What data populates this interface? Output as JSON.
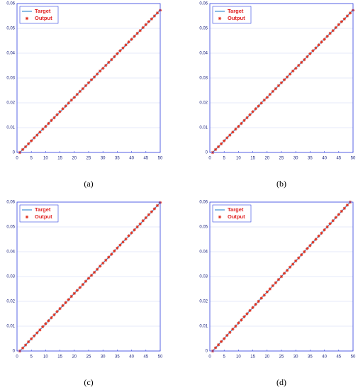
{
  "chart_data": [
    {
      "type": "line",
      "caption": "(a)",
      "xlim": [
        0,
        50
      ],
      "ylim": [
        0,
        0.06
      ],
      "xticks": [
        0,
        5,
        10,
        15,
        20,
        25,
        30,
        35,
        40,
        45,
        50
      ],
      "yticks": [
        0,
        0.01,
        0.02,
        0.03,
        0.04,
        0.05,
        0.06
      ],
      "grid": true,
      "legend": "upper left",
      "x": [
        1,
        2,
        3,
        4,
        5,
        6,
        7,
        8,
        9,
        10,
        11,
        12,
        13,
        14,
        15,
        16,
        17,
        18,
        19,
        20,
        21,
        22,
        23,
        24,
        25,
        26,
        27,
        28,
        29,
        30,
        31,
        32,
        33,
        34,
        35,
        36,
        37,
        38,
        39,
        40,
        41,
        42,
        43,
        44,
        45,
        46,
        47,
        48,
        49,
        50
      ],
      "series": [
        {
          "name": "Target",
          "color": "#3d8fd1",
          "values": [
            0,
            0.0012,
            0.0023,
            0.0035,
            0.0047,
            0.0059,
            0.007,
            0.0082,
            0.0094,
            0.0105,
            0.0117,
            0.0129,
            0.014,
            0.0152,
            0.0164,
            0.0176,
            0.0187,
            0.0199,
            0.0211,
            0.0222,
            0.0234,
            0.0246,
            0.0257,
            0.0269,
            0.0281,
            0.0293,
            0.0304,
            0.0316,
            0.0328,
            0.0339,
            0.0351,
            0.0363,
            0.0374,
            0.0386,
            0.0398,
            0.041,
            0.0421,
            0.0433,
            0.0445,
            0.0456,
            0.0468,
            0.048,
            0.0491,
            0.0503,
            0.0515,
            0.0527,
            0.0538,
            0.055,
            0.0562,
            0.0573
          ]
        },
        {
          "name": "Output",
          "color": "#e0301e",
          "values": [
            0,
            0.0012,
            0.0023,
            0.0035,
            0.0047,
            0.0059,
            0.007,
            0.0082,
            0.0094,
            0.0105,
            0.0117,
            0.0129,
            0.014,
            0.0152,
            0.0164,
            0.0176,
            0.0187,
            0.0199,
            0.0211,
            0.0222,
            0.0234,
            0.0246,
            0.0257,
            0.0269,
            0.0281,
            0.0293,
            0.0304,
            0.0316,
            0.0328,
            0.0339,
            0.0351,
            0.0363,
            0.0374,
            0.0386,
            0.0398,
            0.041,
            0.0421,
            0.0433,
            0.0445,
            0.0456,
            0.0468,
            0.048,
            0.0491,
            0.0503,
            0.0515,
            0.0527,
            0.0538,
            0.055,
            0.0562,
            0.0573
          ]
        }
      ]
    },
    {
      "type": "line",
      "caption": "(b)",
      "xlim": [
        0,
        50
      ],
      "ylim": [
        0,
        0.06
      ],
      "xticks": [
        0,
        5,
        10,
        15,
        20,
        25,
        30,
        35,
        40,
        45,
        50
      ],
      "yticks": [
        0,
        0.01,
        0.02,
        0.03,
        0.04,
        0.05,
        0.06
      ],
      "grid": true,
      "legend": "upper left",
      "x": [
        1,
        2,
        3,
        4,
        5,
        6,
        7,
        8,
        9,
        10,
        11,
        12,
        13,
        14,
        15,
        16,
        17,
        18,
        19,
        20,
        21,
        22,
        23,
        24,
        25,
        26,
        27,
        28,
        29,
        30,
        31,
        32,
        33,
        34,
        35,
        36,
        37,
        38,
        39,
        40,
        41,
        42,
        43,
        44,
        45,
        46,
        47,
        48,
        49,
        50
      ],
      "series": [
        {
          "name": "Target",
          "color": "#3d8fd1",
          "values": [
            0,
            0.0012,
            0.0023,
            0.0035,
            0.0047,
            0.0059,
            0.007,
            0.0082,
            0.0094,
            0.0105,
            0.0117,
            0.0129,
            0.014,
            0.0152,
            0.0164,
            0.0176,
            0.0187,
            0.0199,
            0.0211,
            0.0222,
            0.0234,
            0.0246,
            0.0257,
            0.0269,
            0.0281,
            0.0293,
            0.0304,
            0.0316,
            0.0328,
            0.0339,
            0.0351,
            0.0363,
            0.0374,
            0.0386,
            0.0398,
            0.041,
            0.0421,
            0.0433,
            0.0445,
            0.0456,
            0.0468,
            0.048,
            0.0491,
            0.0503,
            0.0515,
            0.0527,
            0.0538,
            0.055,
            0.0562,
            0.0573
          ]
        },
        {
          "name": "Output",
          "color": "#e0301e",
          "values": [
            0,
            0.0012,
            0.0023,
            0.0035,
            0.0047,
            0.0059,
            0.007,
            0.0082,
            0.0094,
            0.0105,
            0.0117,
            0.0129,
            0.014,
            0.0152,
            0.0164,
            0.0176,
            0.0187,
            0.0199,
            0.0211,
            0.0222,
            0.0234,
            0.0246,
            0.0257,
            0.0269,
            0.0281,
            0.0293,
            0.0304,
            0.0316,
            0.0328,
            0.0339,
            0.0351,
            0.0363,
            0.0374,
            0.0386,
            0.0398,
            0.041,
            0.0421,
            0.0433,
            0.0445,
            0.0456,
            0.0468,
            0.048,
            0.0491,
            0.0503,
            0.0515,
            0.0527,
            0.0538,
            0.055,
            0.0562,
            0.0573
          ]
        }
      ]
    },
    {
      "type": "line",
      "caption": "(c)",
      "xlim": [
        0,
        50
      ],
      "ylim": [
        0,
        0.06
      ],
      "xticks": [
        0,
        5,
        10,
        15,
        20,
        25,
        30,
        35,
        40,
        45,
        50
      ],
      "yticks": [
        0,
        0.01,
        0.02,
        0.03,
        0.04,
        0.05,
        0.06
      ],
      "grid": true,
      "legend": "upper left",
      "x": [
        1,
        2,
        3,
        4,
        5,
        6,
        7,
        8,
        9,
        10,
        11,
        12,
        13,
        14,
        15,
        16,
        17,
        18,
        19,
        20,
        21,
        22,
        23,
        24,
        25,
        26,
        27,
        28,
        29,
        30,
        31,
        32,
        33,
        34,
        35,
        36,
        37,
        38,
        39,
        40,
        41,
        42,
        43,
        44,
        45,
        46,
        47,
        48,
        49,
        50
      ],
      "series": [
        {
          "name": "Target",
          "color": "#3d8fd1",
          "values": [
            0,
            0.0012,
            0.0024,
            0.0037,
            0.0049,
            0.0061,
            0.0073,
            0.0085,
            0.0098,
            0.011,
            0.0122,
            0.0134,
            0.0146,
            0.0159,
            0.0171,
            0.0183,
            0.0195,
            0.0207,
            0.022,
            0.0232,
            0.0244,
            0.0256,
            0.0268,
            0.0281,
            0.0293,
            0.0305,
            0.0317,
            0.0329,
            0.0342,
            0.0354,
            0.0366,
            0.0378,
            0.039,
            0.0403,
            0.0415,
            0.0427,
            0.0439,
            0.0451,
            0.0464,
            0.0476,
            0.0488,
            0.05,
            0.0512,
            0.0525,
            0.0537,
            0.0549,
            0.0561,
            0.0573,
            0.0586,
            0.0598
          ]
        },
        {
          "name": "Output",
          "color": "#e0301e",
          "values": [
            0,
            0.0012,
            0.0024,
            0.0037,
            0.0049,
            0.0061,
            0.0073,
            0.0085,
            0.0098,
            0.011,
            0.0122,
            0.0134,
            0.0146,
            0.0159,
            0.0171,
            0.0183,
            0.0195,
            0.0207,
            0.022,
            0.0232,
            0.0244,
            0.0256,
            0.0268,
            0.0281,
            0.0293,
            0.0305,
            0.0317,
            0.0329,
            0.0342,
            0.0354,
            0.0366,
            0.0378,
            0.039,
            0.0403,
            0.0415,
            0.0427,
            0.0439,
            0.0451,
            0.0464,
            0.0476,
            0.0488,
            0.05,
            0.0512,
            0.0525,
            0.0537,
            0.0549,
            0.0561,
            0.0573,
            0.0586,
            0.0598
          ]
        }
      ]
    },
    {
      "type": "line",
      "caption": "(d)",
      "xlim": [
        0,
        50
      ],
      "ylim": [
        0,
        0.06
      ],
      "xticks": [
        0,
        5,
        10,
        15,
        20,
        25,
        30,
        35,
        40,
        45,
        50
      ],
      "yticks": [
        0,
        0.01,
        0.02,
        0.03,
        0.04,
        0.05,
        0.06
      ],
      "grid": true,
      "legend": "upper left",
      "x": [
        1,
        2,
        3,
        4,
        5,
        6,
        7,
        8,
        9,
        10,
        11,
        12,
        13,
        14,
        15,
        16,
        17,
        18,
        19,
        20,
        21,
        22,
        23,
        24,
        25,
        26,
        27,
        28,
        29,
        30,
        31,
        32,
        33,
        34,
        35,
        36,
        37,
        38,
        39,
        40,
        41,
        42,
        43,
        44,
        45,
        46,
        47,
        48,
        49
      ],
      "series": [
        {
          "name": "Target",
          "color": "#3d8fd1",
          "values": [
            0,
            0.0013,
            0.0025,
            0.0038,
            0.005,
            0.0063,
            0.0075,
            0.0088,
            0.01,
            0.0113,
            0.0125,
            0.0138,
            0.015,
            0.0163,
            0.0175,
            0.0188,
            0.02,
            0.0213,
            0.0225,
            0.0238,
            0.025,
            0.0263,
            0.0275,
            0.0288,
            0.03,
            0.0313,
            0.0325,
            0.0338,
            0.035,
            0.0363,
            0.0375,
            0.0388,
            0.04,
            0.0413,
            0.0425,
            0.0438,
            0.045,
            0.0463,
            0.0475,
            0.0488,
            0.05,
            0.0513,
            0.0525,
            0.0538,
            0.055,
            0.0563,
            0.0575,
            0.0588,
            0.06
          ]
        },
        {
          "name": "Output",
          "color": "#e0301e",
          "values": [
            0,
            0.0013,
            0.0025,
            0.0038,
            0.005,
            0.0063,
            0.0075,
            0.0088,
            0.01,
            0.0113,
            0.0125,
            0.0138,
            0.015,
            0.0163,
            0.0175,
            0.0188,
            0.02,
            0.0213,
            0.0225,
            0.0238,
            0.025,
            0.0263,
            0.0275,
            0.0288,
            0.03,
            0.0313,
            0.0325,
            0.0338,
            0.035,
            0.0363,
            0.0375,
            0.0388,
            0.04,
            0.0413,
            0.0425,
            0.0438,
            0.045,
            0.0463,
            0.0475,
            0.0488,
            0.05,
            0.0513,
            0.0525,
            0.0538,
            0.055,
            0.0563,
            0.0575,
            0.0588,
            0.06
          ]
        }
      ]
    }
  ]
}
